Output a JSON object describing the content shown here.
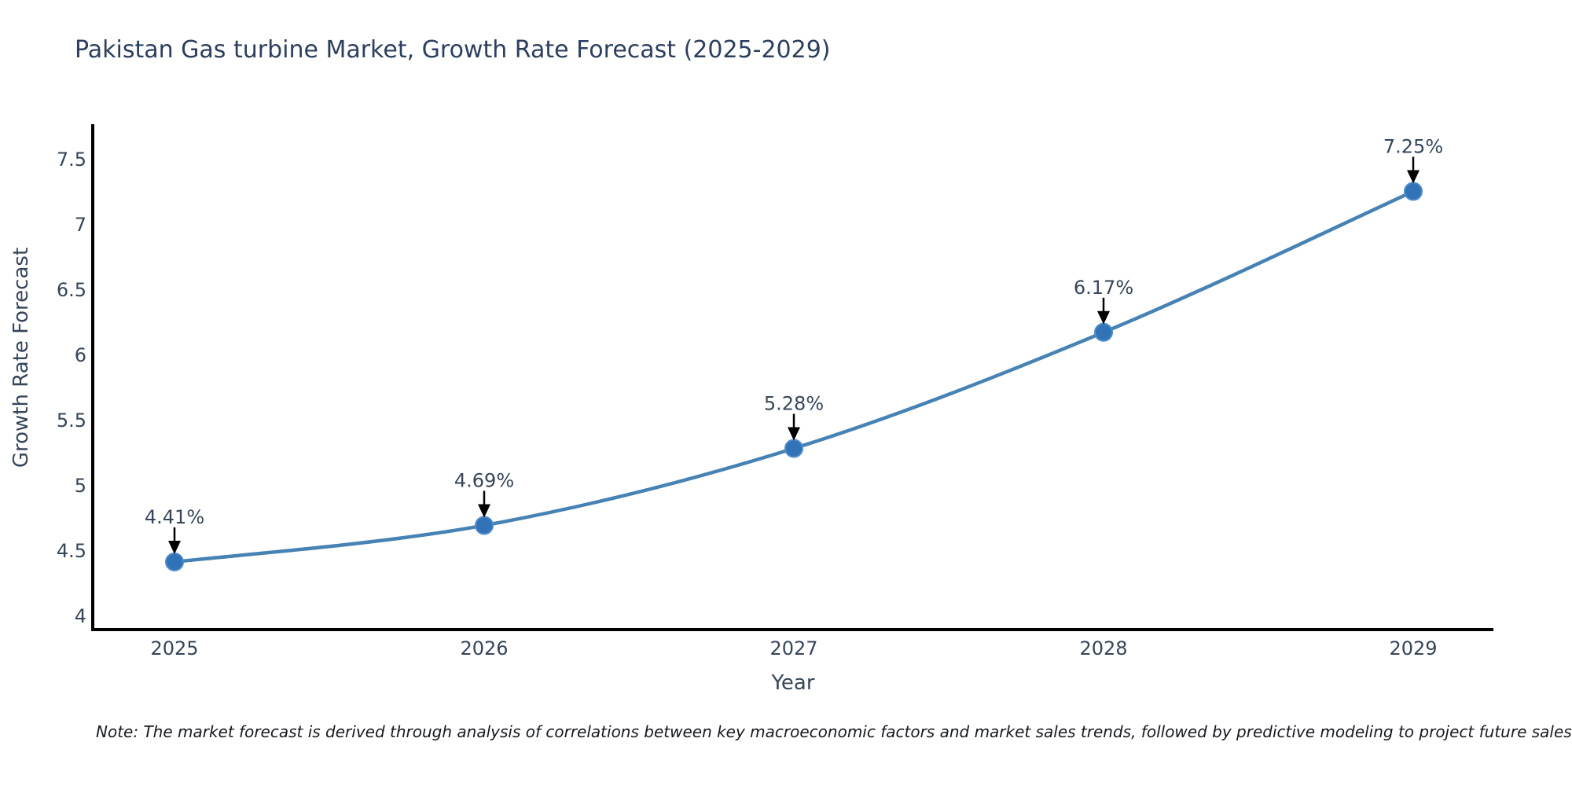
{
  "page": {
    "note": "Note: The market forecast is derived through analysis of correlations between key macroeconomic factors and market sales trends, followed by predictive modeling to project future sales"
  },
  "chart_data": {
    "type": "line",
    "title": "Pakistan Gas turbine Market, Growth Rate Forecast (2025-2029)",
    "x": [
      "2025",
      "2026",
      "2027",
      "2028",
      "2029"
    ],
    "series": [
      {
        "name": "Growth Rate Forecast",
        "values": [
          4.41,
          4.69,
          5.28,
          6.17,
          7.25
        ]
      }
    ],
    "point_labels": [
      "4.41%",
      "4.69%",
      "5.28%",
      "6.17%",
      "7.25%"
    ],
    "xlabel": "Year",
    "ylabel": "Growth Rate Forecast",
    "yticks": [
      4,
      4.5,
      5,
      5.5,
      6,
      6.5,
      7,
      7.5
    ],
    "ylim": [
      3.87,
      7.77
    ],
    "grid": false,
    "legend_position": "none",
    "line_shape": "spline",
    "marker_style": "circle",
    "annotation_arrows": true,
    "colors": {
      "line": "#4682b4",
      "marker": "#3273b8",
      "marker_edge": "#4f8cc9",
      "axis": "#000000",
      "tick_text": "#36455a",
      "annotation_text": "#36455a",
      "title_text": "#2c3f5e",
      "note_text": "#16191f"
    }
  }
}
